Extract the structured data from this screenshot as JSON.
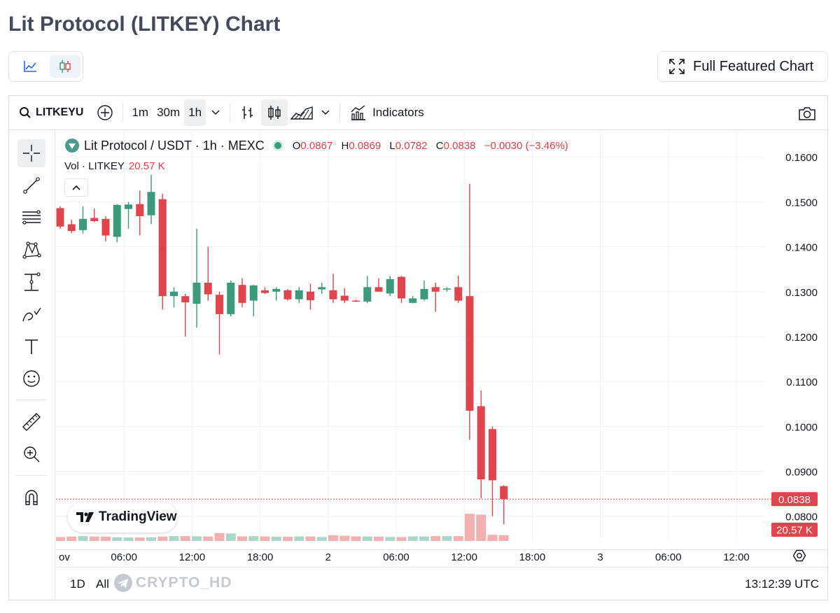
{
  "page": {
    "title": "Lit Protocol (LITKEY) Chart"
  },
  "view_toggle": {
    "line_icon": "line-chart-icon",
    "candle_icon": "candlestick-icon",
    "active": "candles"
  },
  "full_chart": {
    "label": "Full Featured Chart",
    "icon": "expand-icon"
  },
  "toolbar": {
    "symbol": "LITKEYU",
    "intervals": [
      "1m",
      "30m",
      "1h"
    ],
    "active_interval": "1h",
    "indicators_label": "Indicators"
  },
  "legend": {
    "title": "Lit Protocol / USDT · 1h · MEXC",
    "o_label": "O",
    "o": "0.0867",
    "h_label": "H",
    "h": "0.0869",
    "l_label": "L",
    "l": "0.0782",
    "c_label": "C",
    "c": "0.0838",
    "change": "−0.0030 (−3.46%)",
    "vol_label": "Vol · LITKEY",
    "vol_value": "20.57 K"
  },
  "tradingview_logo": "TradingView",
  "bottom": {
    "range_1d": "1D",
    "range_all": "All",
    "watermark": "CRYPTO_HD",
    "clock": "13:12:39 UTC"
  },
  "colors": {
    "up": "#3c9a7c",
    "down": "#e0454d",
    "vol_up": "#a8d6cb",
    "vol_down": "#f3b0b0",
    "axis_label_bg": "#e0454d"
  },
  "chart_data": {
    "type": "candlestick",
    "symbol": "Lit Protocol / USDT",
    "interval": "1h",
    "exchange": "MEXC",
    "y_ticks": [
      "0.1600",
      "0.1500",
      "0.1400",
      "0.1300",
      "0.1200",
      "0.1100",
      "0.1000",
      "0.0900",
      "0.0800"
    ],
    "ylim": [
      0.0745,
      0.1658
    ],
    "x_ticks": [
      "ov",
      "06:00",
      "12:00",
      "18:00",
      "2",
      "06:00",
      "12:00",
      "18:00",
      "3",
      "06:00",
      "12:00"
    ],
    "last_price_label": "0.0838",
    "last_volume_label": "20.57 K",
    "candles": [
      {
        "o": 0.1486,
        "h": 0.149,
        "l": 0.144,
        "c": 0.1445
      },
      {
        "o": 0.145,
        "h": 0.146,
        "l": 0.143,
        "c": 0.1435
      },
      {
        "o": 0.1437,
        "h": 0.149,
        "l": 0.143,
        "c": 0.1462
      },
      {
        "o": 0.1464,
        "h": 0.1485,
        "l": 0.1455,
        "c": 0.1457
      },
      {
        "o": 0.1462,
        "h": 0.1468,
        "l": 0.1412,
        "c": 0.1425
      },
      {
        "o": 0.1422,
        "h": 0.1495,
        "l": 0.141,
        "c": 0.1493
      },
      {
        "o": 0.1484,
        "h": 0.15,
        "l": 0.144,
        "c": 0.1494
      },
      {
        "o": 0.1495,
        "h": 0.1525,
        "l": 0.1425,
        "c": 0.1468
      },
      {
        "o": 0.147,
        "h": 0.156,
        "l": 0.145,
        "c": 0.1522
      },
      {
        "o": 0.1506,
        "h": 0.1518,
        "l": 0.126,
        "c": 0.129
      },
      {
        "o": 0.129,
        "h": 0.131,
        "l": 0.1265,
        "c": 0.13
      },
      {
        "o": 0.129,
        "h": 0.1295,
        "l": 0.12,
        "c": 0.1276
      },
      {
        "o": 0.1273,
        "h": 0.144,
        "l": 0.122,
        "c": 0.132
      },
      {
        "o": 0.132,
        "h": 0.14,
        "l": 0.128,
        "c": 0.1294
      },
      {
        "o": 0.1293,
        "h": 0.13,
        "l": 0.116,
        "c": 0.125
      },
      {
        "o": 0.125,
        "h": 0.1325,
        "l": 0.1245,
        "c": 0.132
      },
      {
        "o": 0.1315,
        "h": 0.133,
        "l": 0.1265,
        "c": 0.1275
      },
      {
        "o": 0.128,
        "h": 0.1315,
        "l": 0.1245,
        "c": 0.1314
      },
      {
        "o": 0.1303,
        "h": 0.131,
        "l": 0.1295,
        "c": 0.1297
      },
      {
        "o": 0.13,
        "h": 0.131,
        "l": 0.128,
        "c": 0.1306
      },
      {
        "o": 0.1303,
        "h": 0.1306,
        "l": 0.128,
        "c": 0.1283
      },
      {
        "o": 0.1283,
        "h": 0.131,
        "l": 0.1275,
        "c": 0.1303
      },
      {
        "o": 0.13,
        "h": 0.1318,
        "l": 0.126,
        "c": 0.1281
      },
      {
        "o": 0.1305,
        "h": 0.132,
        "l": 0.1295,
        "c": 0.131
      },
      {
        "o": 0.1303,
        "h": 0.134,
        "l": 0.1275,
        "c": 0.1283
      },
      {
        "o": 0.1291,
        "h": 0.1308,
        "l": 0.1275,
        "c": 0.128
      },
      {
        "o": 0.128,
        "h": 0.1282,
        "l": 0.1277,
        "c": 0.1279
      },
      {
        "o": 0.1278,
        "h": 0.1335,
        "l": 0.1275,
        "c": 0.131
      },
      {
        "o": 0.131,
        "h": 0.133,
        "l": 0.1302,
        "c": 0.13
      },
      {
        "o": 0.1296,
        "h": 0.1335,
        "l": 0.129,
        "c": 0.1328
      },
      {
        "o": 0.1333,
        "h": 0.1335,
        "l": 0.1275,
        "c": 0.1285
      },
      {
        "o": 0.1275,
        "h": 0.129,
        "l": 0.1274,
        "c": 0.1285
      },
      {
        "o": 0.1283,
        "h": 0.1325,
        "l": 0.128,
        "c": 0.1306
      },
      {
        "o": 0.131,
        "h": 0.132,
        "l": 0.1255,
        "c": 0.13
      },
      {
        "o": 0.1305,
        "h": 0.131,
        "l": 0.13,
        "c": 0.1307
      },
      {
        "o": 0.131,
        "h": 0.1336,
        "l": 0.1275,
        "c": 0.128
      },
      {
        "o": 0.129,
        "h": 0.154,
        "l": 0.097,
        "c": 0.1035
      },
      {
        "o": 0.1045,
        "h": 0.108,
        "l": 0.084,
        "c": 0.0882
      },
      {
        "o": 0.0994,
        "h": 0.1,
        "l": 0.08,
        "c": 0.088
      },
      {
        "o": 0.0867,
        "h": 0.0869,
        "l": 0.0782,
        "c": 0.0838
      }
    ],
    "volume_relative": [
      0.45,
      0.5,
      0.55,
      0.5,
      0.48,
      0.42,
      0.4,
      0.4,
      0.42,
      0.5,
      0.55,
      0.55,
      0.53,
      0.5,
      0.9,
      0.85,
      0.52,
      0.55,
      0.5,
      0.48,
      0.48,
      0.52,
      0.5,
      0.45,
      0.65,
      0.6,
      0.52,
      0.5,
      0.48,
      0.45,
      0.45,
      0.52,
      0.5,
      0.55,
      0.55,
      0.55,
      3.1,
      3.0,
      0.7,
      0.65
    ]
  }
}
